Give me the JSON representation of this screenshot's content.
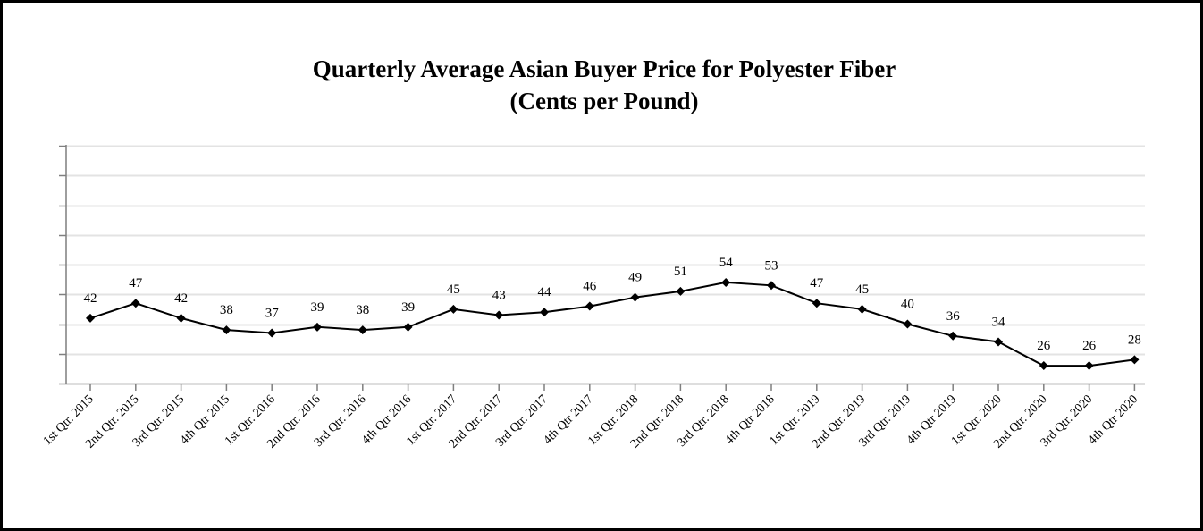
{
  "chart_data": {
    "type": "line",
    "title": "Quarterly Average Asian Buyer Price for Polyester Fiber",
    "subtitle": "(Cents per Pound)",
    "categories": [
      "1st Qtr. 2015",
      "2nd Qtr. 2015",
      "3rd Qtr. 2015",
      "4th Qtr 2015",
      "1st Qtr. 2016",
      "2nd Qtr. 2016",
      "3rd Qtr. 2016",
      "4th Qtr 2016",
      "1st Qtr. 2017",
      "2nd Qtr. 2017",
      "3rd Qtr. 2017",
      "4th Qtr 2017",
      "1st Qtr. 2018",
      "2nd Qtr. 2018",
      "3rd Qtr. 2018",
      "4th Qtr 2018",
      "1st Qtr. 2019",
      "2nd Qtr. 2019",
      "3rd Qtr. 2019",
      "4th Qtr 2019",
      "1st Qtr. 2020",
      "2nd Qtr. 2020",
      "3rd Qtr. 2020",
      "4th Qtr 2020"
    ],
    "series": [
      {
        "values": [
          42,
          47,
          42,
          38,
          37,
          39,
          38,
          39,
          45,
          43,
          44,
          46,
          49,
          51,
          54,
          53,
          47,
          45,
          40,
          36,
          34,
          26,
          26,
          28
        ],
        "color": "#000000",
        "marker": "diamond"
      }
    ],
    "ylim": [
      20,
      100
    ],
    "ytick_count": 9,
    "y_tick_labels_shown": false,
    "data_labels": true,
    "grid": true,
    "grid_color": "#e3e3e3",
    "legend": "none"
  }
}
